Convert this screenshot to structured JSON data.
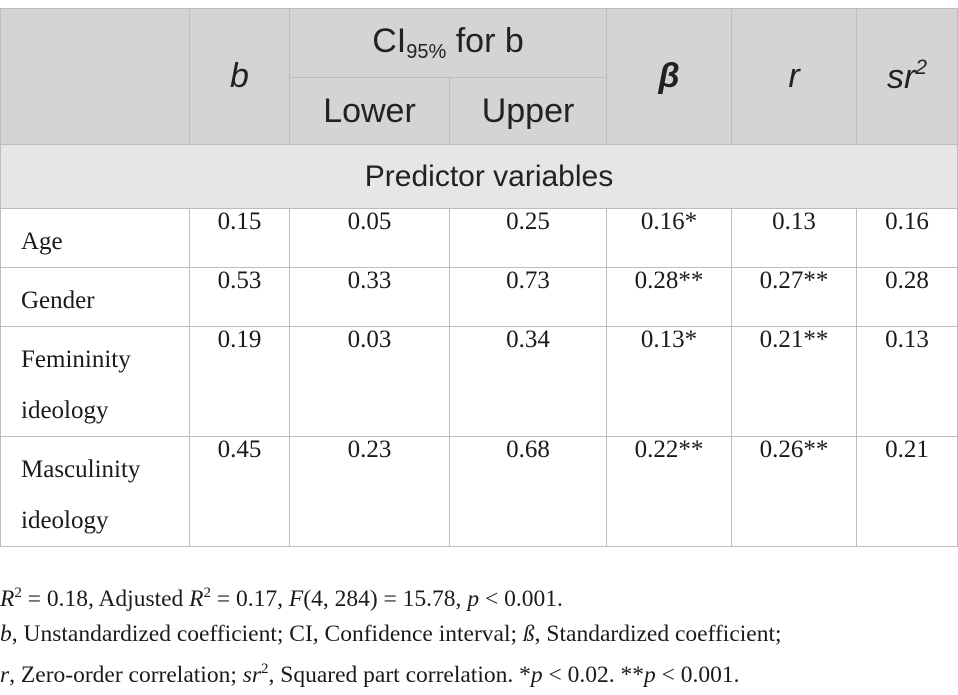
{
  "header": {
    "b": "b",
    "ci_prefix": "CI",
    "ci_sub": "95%",
    "ci_suffix": " for b",
    "lower": "Lower",
    "upper": "Upper",
    "beta": "β",
    "r": "r",
    "sr_base": "sr",
    "sr_sup": "2"
  },
  "section_label": "Predictor variables",
  "rows": [
    {
      "label": "Age",
      "b": "0.15",
      "lower": "0.05",
      "upper": "0.25",
      "beta": "0.16*",
      "r": "0.13",
      "sr2": "0.16"
    },
    {
      "label": "Gender",
      "b": "0.53",
      "lower": "0.33",
      "upper": "0.73",
      "beta": "0.28**",
      "r": "0.27**",
      "sr2": "0.28"
    },
    {
      "label": "Femininity ideology",
      "b": "0.19",
      "lower": "0.03",
      "upper": "0.34",
      "beta": "0.13*",
      "r": "0.21**",
      "sr2": "0.13"
    },
    {
      "label": "Masculinity ideology",
      "b": "0.45",
      "lower": "0.23",
      "upper": "0.68",
      "beta": "0.22**",
      "r": "0.26**",
      "sr2": "0.21"
    }
  ],
  "notes": {
    "line1": {
      "r2_sym": "R",
      "r2_sup": "2",
      "r2_val": " = 0.18, Adjusted ",
      "adj_sym": "R",
      "adj_sup": "2",
      "adj_val": " = 0.17, ",
      "f_sym": "F",
      "f_val": "(4, 284) = 15.78, ",
      "p_sym": "p",
      "p_val": " < 0.001."
    },
    "line2": {
      "b_sym": "b",
      "text_a": ", Unstandardized coefficient; CI, Confidence interval; ",
      "beta_sym": "ß",
      "text_b": ", Standardized coefficient;"
    },
    "line3": {
      "r_sym": "r",
      "text_a": ", Zero-order correlation; ",
      "sr_sym": "sr",
      "sr_sup": "2",
      "text_b": ", Squared part correlation. *",
      "p1_sym": "p",
      "p1_val": " < 0.02. **",
      "p2_sym": "p",
      "p2_val": " < 0.001."
    }
  }
}
